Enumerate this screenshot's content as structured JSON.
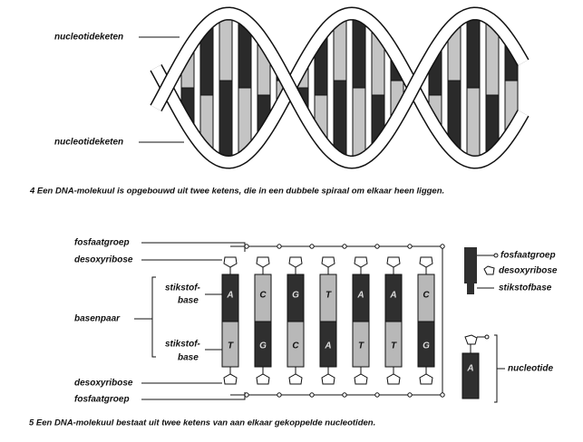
{
  "figure4": {
    "labels": [
      "nucleotideketen",
      "nucleotideketen"
    ],
    "caption": "4 Een DNA-molekuul is opgebouwd uit twee ketens, die in een dubbele spiraal om elkaar heen liggen."
  },
  "figure5": {
    "labels": {
      "top_phosphate": "fosfaatgroep",
      "top_sugar": "desoxyribose",
      "base_top": [
        "stikstof-",
        "base"
      ],
      "base_pair": "basenpaar",
      "base_bottom": [
        "stikstof-",
        "base"
      ],
      "bottom_sugar": "desoxyribose",
      "bottom_phosphate": "fosfaatgroep"
    },
    "pairs": [
      {
        "top": "A",
        "bottom": "T"
      },
      {
        "top": "C",
        "bottom": "G"
      },
      {
        "top": "G",
        "bottom": "C"
      },
      {
        "top": "T",
        "bottom": "A"
      },
      {
        "top": "A",
        "bottom": "T"
      },
      {
        "top": "A",
        "bottom": "T"
      },
      {
        "top": "C",
        "bottom": "G"
      }
    ],
    "base_colors": {
      "A": "#2f2f2f",
      "G": "#2f2f2f",
      "C": "#b8b8b8",
      "T": "#b8b8b8"
    },
    "legend": {
      "phosphate": "fosfaatgroep",
      "sugar": "desoxyribose",
      "base": "stikstofbase",
      "base_letter": "A",
      "nucleotide": "nucleotide"
    },
    "caption": "5 Een DNA-molekuul bestaat uit twee ketens van aan elkaar gekoppelde nucleotiden."
  }
}
